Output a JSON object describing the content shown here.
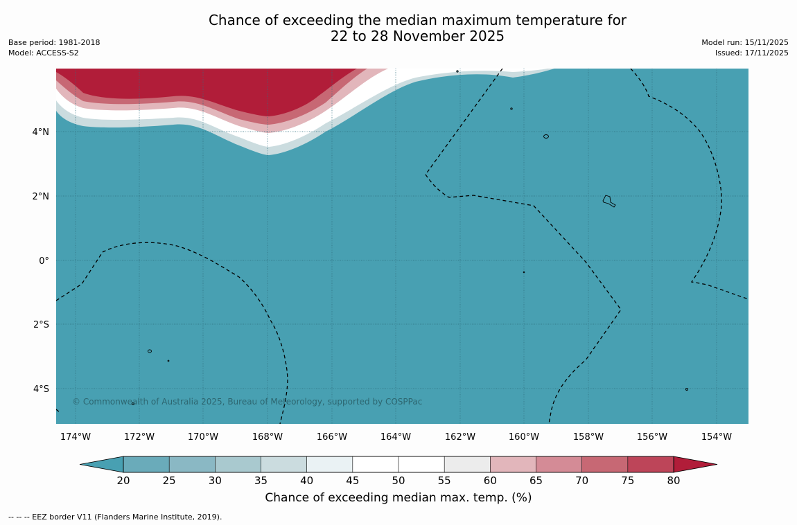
{
  "title": {
    "line1": "Chance of exceeding the median maximum temperature for",
    "line2": "22 to 28 November 2025"
  },
  "meta_left": {
    "base_period": "Base period: 1981-2018",
    "model": "Model: ACCESS-S2"
  },
  "meta_right": {
    "model_run": "Model run: 15/11/2025",
    "issued": "Issued: 17/11/2025"
  },
  "map": {
    "longitude_labels": [
      "174°W",
      "172°W",
      "170°W",
      "168°W",
      "166°W",
      "164°W",
      "162°W",
      "160°W",
      "158°W",
      "156°W",
      "154°W"
    ],
    "latitude_labels": [
      "4°N",
      "2°N",
      "0°",
      "2°S",
      "4°S"
    ],
    "copyright": "© Commonwealth of Australia 2025, Bureau of Meteorology, supported by COSPPac",
    "colors": {
      "ocean_fill": "#48a0b2",
      "warm_fill": "#b11d39",
      "boundary": "#000000"
    }
  },
  "colorbar": {
    "ticks": [
      "20",
      "25",
      "30",
      "35",
      "40",
      "45",
      "50",
      "55",
      "60",
      "65",
      "70",
      "75",
      "80"
    ],
    "colors": [
      "#48a0b2",
      "#6aabba",
      "#8ab8c4",
      "#a9c9cf",
      "#cbdcdf",
      "#eaf2f4",
      "#ffffff",
      "#ffffff",
      "#ececec",
      "#e2b6bb",
      "#d48b96",
      "#c76874",
      "#bd4559",
      "#b11d39"
    ],
    "label": "Chance of exceeding median max. temp. (%)"
  },
  "footnote": "--  --  -- EEZ border V11 (Flanders Marine Institute, 2019)."
}
